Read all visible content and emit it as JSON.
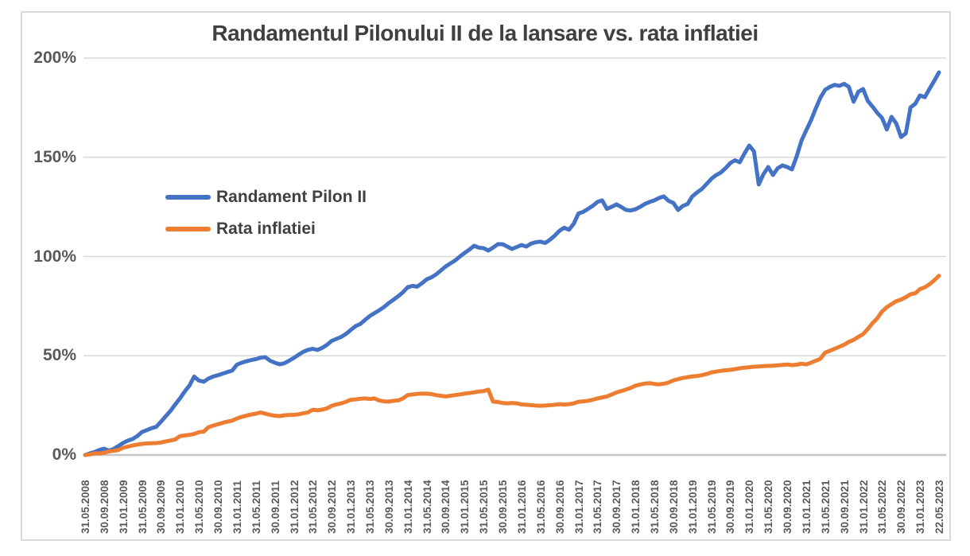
{
  "title": "Randamentul Pilonului II de la lansare vs. rata inflatiei",
  "colors": {
    "pilon_line": "#4472C4",
    "inflatie_line": "#ED7D31",
    "gridline": "#D9D9D9",
    "zero_axis": "#C6C6C6",
    "axis_text": "#595959",
    "title_text": "#404040",
    "border": "#D9D9D9"
  },
  "legend": {
    "items": [
      {
        "label": "Randament Pilon II",
        "color": "#4472C4"
      },
      {
        "label": "Rata inflatiei",
        "color": "#ED7D31"
      }
    ]
  },
  "chart_data": {
    "type": "line",
    "title": "Randamentul Pilonului II de la lansare vs. rata inflatiei",
    "xlabel": "",
    "ylabel": "",
    "ylim": [
      0,
      200
    ],
    "grid": "horizontal",
    "legend_position": "inside-left",
    "x_frequency": "monthly",
    "x_start": "31.05.2008",
    "x_end": "22.05.2023",
    "y_ticks": [
      {
        "label": "200%",
        "value": 200
      },
      {
        "label": "150%",
        "value": 150
      },
      {
        "label": "100%",
        "value": 100
      },
      {
        "label": "50%",
        "value": 50
      },
      {
        "label": "0%",
        "value": 0
      }
    ],
    "x_tick_labels": [
      "31.05.2008",
      "30.09.2008",
      "31.01.2009",
      "31.05.2009",
      "30.09.2009",
      "31.01.2010",
      "31.05.2010",
      "30.09.2010",
      "31.01.2011",
      "31.05.2011",
      "30.09.2011",
      "31.01.2012",
      "31.05.2012",
      "30.09.2012",
      "31.01.2013",
      "31.05.2013",
      "30.09.2013",
      "31.01.2014",
      "31.05.2014",
      "30.09.2014",
      "31.01.2015",
      "31.05.2015",
      "30.09.2015",
      "31.01.2016",
      "31.05.2016",
      "30.09.2016",
      "31.01.2017",
      "31.05.2017",
      "30.09.2017",
      "31.01.2018",
      "31.05.2018",
      "30.09.2018",
      "31.01.2019",
      "31.05.2019",
      "30.09.2019",
      "31.01.2020",
      "31.05.2020",
      "30.09.2020",
      "31.01.2021",
      "31.05.2021",
      "30.09.2021",
      "31.01.2022",
      "31.05.2022",
      "30.09.2022",
      "31.01.2023",
      "22.05.2023"
    ],
    "x_ticks_every_n_months": 4,
    "series": [
      {
        "name": "Randament Pilon II",
        "color": "#4472C4",
        "values_percent_monthly": [
          0,
          0.8,
          1.5,
          2.5,
          3.2,
          2.2,
          3,
          4.5,
          6,
          7.2,
          8,
          9.5,
          11.6,
          12.5,
          13.5,
          14.2,
          16.8,
          19.5,
          22.2,
          25.5,
          28.5,
          32,
          35,
          39.5,
          37.5,
          36.9,
          38.5,
          39.5,
          40.2,
          41,
          41.8,
          42.5,
          45.5,
          46.5,
          47.2,
          47.8,
          48.3,
          49,
          49.3,
          47.5,
          46.5,
          45.7,
          46.2,
          47.5,
          48.9,
          50.5,
          52,
          53,
          53.5,
          52.9,
          54,
          55.5,
          57.5,
          58.5,
          59.5,
          61,
          63,
          64.9,
          66,
          68,
          70,
          71.5,
          72.9,
          74.5,
          76.5,
          78.2,
          80,
          82,
          84.5,
          85.2,
          84.8,
          86.5,
          88.5,
          89.5,
          91,
          93,
          95,
          96.5,
          98,
          100,
          101.8,
          103.5,
          105.4,
          104.5,
          104.2,
          103,
          104.5,
          106.2,
          106.2,
          105,
          103.8,
          104.8,
          105.8,
          105,
          106.5,
          107.2,
          107.5,
          106.8,
          108.5,
          110.5,
          113,
          114.5,
          113.5,
          116.5,
          121.7,
          122.5,
          124,
          125.5,
          127.5,
          128.3,
          124,
          125,
          126.3,
          125,
          123.5,
          123.2,
          123.8,
          125,
          126.5,
          127.5,
          128.3,
          129.5,
          130.3,
          128,
          127,
          123.5,
          125.5,
          126.5,
          130.3,
          132.3,
          134,
          136.5,
          139.1,
          141,
          142.3,
          144.5,
          147.1,
          148.5,
          147.5,
          152,
          155.9,
          153,
          136.3,
          141.5,
          145.1,
          141.1,
          144.5,
          145.9,
          145.1,
          143.9,
          150.5,
          158.3,
          163.5,
          168.5,
          174.5,
          180,
          184,
          185.5,
          186.5,
          186,
          187,
          185.5,
          178,
          183,
          184.4,
          178.4,
          175.5,
          172.4,
          169.8,
          164,
          170.4,
          167,
          160.2,
          162,
          175.1,
          177,
          181.2,
          180.3,
          184.5,
          188.5,
          192.8
        ]
      },
      {
        "name": "Rata inflatiei",
        "color": "#ED7D31",
        "values_percent_monthly": [
          0,
          0.3,
          0.8,
          0.8,
          1.1,
          1.8,
          2.1,
          2.5,
          3.6,
          4.2,
          4.8,
          5.2,
          5.6,
          5.8,
          5.9,
          6,
          6.3,
          6.8,
          7.3,
          7.8,
          9.5,
          9.8,
          10.2,
          10.6,
          11.5,
          11.8,
          14,
          14.8,
          15.5,
          16.2,
          16.8,
          17.3,
          18.4,
          19.2,
          19.8,
          20.4,
          20.8,
          21.4,
          20.8,
          20.2,
          19.8,
          19.6,
          20,
          20.2,
          20.2,
          20.5,
          21,
          21.5,
          22.8,
          22.5,
          22.9,
          23.5,
          24.8,
          25.5,
          26,
          26.8,
          27.8,
          28,
          28.3,
          28.5,
          28.2,
          28.5,
          27.5,
          27,
          26.9,
          27.3,
          27.5,
          28.5,
          30.2,
          30.5,
          30.8,
          30.9,
          30.9,
          30.7,
          30.2,
          29.8,
          29.5,
          29.8,
          30.2,
          30.5,
          30.9,
          31.2,
          31.6,
          32,
          32.2,
          32.9,
          26.9,
          26.7,
          26.2,
          26,
          26.2,
          26,
          25.5,
          25.3,
          25.1,
          24.9,
          24.8,
          24.9,
          25.1,
          25.3,
          25.6,
          25.4,
          25.6,
          26,
          26.8,
          27,
          27.3,
          27.8,
          28.5,
          29,
          29.5,
          30.5,
          31.5,
          32.2,
          33,
          33.8,
          34.9,
          35.5,
          36,
          36.2,
          35.8,
          35.6,
          35.9,
          36.5,
          37.6,
          38.2,
          38.8,
          39.2,
          39.6,
          39.8,
          40.2,
          40.8,
          41.6,
          42,
          42.4,
          42.7,
          42.9,
          43.3,
          43.7,
          44,
          44.2,
          44.5,
          44.6,
          44.8,
          44.9,
          45,
          45.2,
          45.4,
          45.6,
          45.3,
          45.5,
          46,
          45.6,
          46.5,
          47.5,
          48.5,
          51.6,
          52.5,
          53.5,
          54.5,
          55.6,
          57,
          58,
          59.5,
          60.9,
          63.5,
          66.5,
          68.9,
          72.3,
          74.5,
          76,
          77.5,
          78.3,
          79.5,
          81,
          81.5,
          83.6,
          84.5,
          86,
          88,
          90.3
        ]
      }
    ]
  }
}
